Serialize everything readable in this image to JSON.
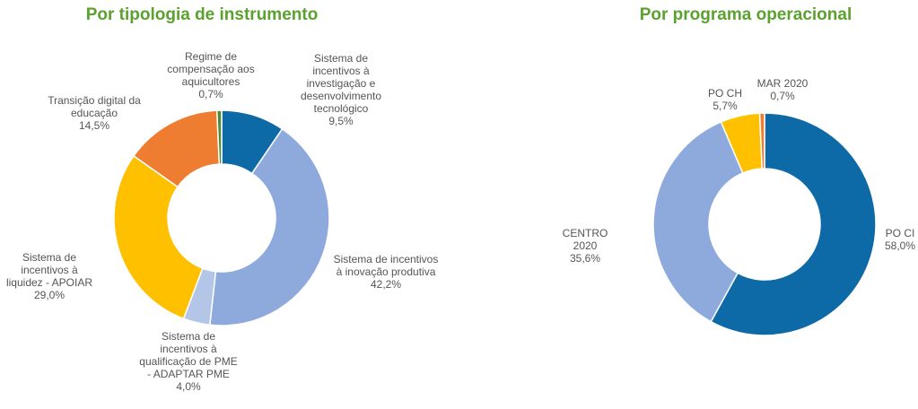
{
  "chart_data": [
    {
      "type": "donut",
      "title": "Por tipologia de instrumento",
      "categories": [
        "Sistema de incentivos à investigação e desenvolvimento tecnológico",
        "Sistema de incentivos à inovação produtiva",
        "Sistema de incentivos à qualificação de PME - ADAPTAR PME",
        "Sistema de incentivos à liquidez - APOIAR",
        "Transição digital da educação",
        "Regime de compensação aos aquicultores"
      ],
      "values": [
        9.5,
        42.2,
        4.0,
        29.0,
        14.5,
        0.7
      ],
      "value_labels": [
        "9,5%",
        "42,2%",
        "4,0%",
        "29,0%",
        "14,5%",
        "0,7%"
      ],
      "colors": [
        "#0e6aa6",
        "#8eaadd",
        "#b4c6e8",
        "#ffc000",
        "#ee7d32",
        "#4f8a34"
      ]
    },
    {
      "type": "donut",
      "title": "Por programa operacional",
      "categories": [
        "PO CI",
        "CENTRO 2020",
        "PO CH",
        "MAR 2020"
      ],
      "values": [
        58.0,
        35.6,
        5.7,
        0.7
      ],
      "value_labels": [
        "58,0%",
        "35,6%",
        "5,7%",
        "0,7%"
      ],
      "colors": [
        "#0e6aa6",
        "#8eaadd",
        "#ffc000",
        "#ee7d32"
      ]
    }
  ]
}
